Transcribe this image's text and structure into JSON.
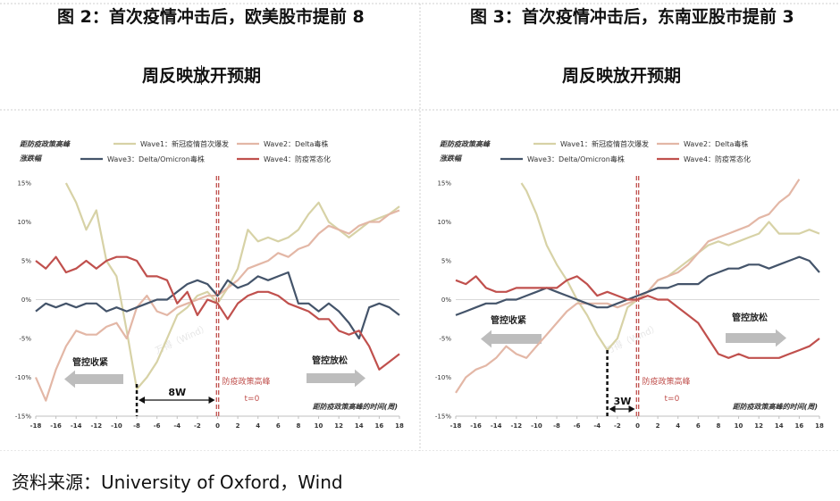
{
  "panels": [
    {
      "title_line1": "图 2：首次疫情冲击后，欧美股市提前 8",
      "title_line2": "周反映放开预期"
    },
    {
      "title_line1": "图 3：首次疫情冲击后，东南亚股市提前 3",
      "title_line2": "周反映放开预期"
    }
  ],
  "source": "资料来源：University of Oxford，Wind",
  "chart_data": [
    {
      "type": "line",
      "ylabel_line1": "距防疫政策高峰",
      "ylabel_line2": "涨跌幅",
      "xlabel": "距防疫政策高峰的时间(周)",
      "xlim": [
        -18,
        18
      ],
      "ylim": [
        -15,
        15
      ],
      "x_ticks": [
        "-18",
        "-16",
        "-14",
        "-12",
        "-10",
        "-8",
        "-6",
        "-4",
        "-2",
        "0",
        "2",
        "4",
        "6",
        "8",
        "10",
        "12",
        "14",
        "16",
        "18"
      ],
      "y_ticks": [
        "15%",
        "10%",
        "5%",
        "0%",
        "-5%",
        "-10%",
        "-15%"
      ],
      "legend_position": "top",
      "series": [
        {
          "name": "Wave1：新冠疫情首次爆发",
          "color": "#d7d2a6",
          "x": [
            -15,
            -14,
            -13,
            -12,
            -11,
            -10,
            -9,
            -8,
            -7,
            -6,
            -5,
            -4,
            -3,
            -2,
            -1,
            0,
            1,
            2,
            3,
            4,
            5,
            6,
            7,
            8,
            9,
            10,
            11,
            12,
            13,
            14,
            15,
            16,
            17,
            18
          ],
          "y": [
            15,
            12.5,
            9,
            11.5,
            5,
            3,
            -4,
            -11.5,
            -10,
            -8,
            -5,
            -2,
            -1,
            0.5,
            1,
            -0.5,
            1.5,
            4,
            9,
            7.5,
            8,
            7.5,
            8,
            9,
            11,
            12.5,
            10,
            9,
            8,
            9,
            10,
            10.5,
            11,
            12
          ]
        },
        {
          "name": "Wave2：Delta毒株",
          "color": "#e3b7a6",
          "x": [
            -18,
            -17,
            -16,
            -15,
            -14,
            -13,
            -12,
            -11,
            -10,
            -9,
            -8,
            -7,
            -6,
            -5,
            -4,
            -3,
            -2,
            -1,
            0,
            1,
            2,
            3,
            4,
            5,
            6,
            7,
            8,
            9,
            10,
            11,
            12,
            13,
            14,
            15,
            16,
            17,
            18
          ],
          "y": [
            -10,
            -13,
            -9,
            -6,
            -4,
            -4.5,
            -4.5,
            -3.5,
            -3,
            -5,
            -1,
            0.5,
            -1.5,
            -2,
            -1,
            -0.5,
            0,
            0.5,
            0.5,
            1.5,
            2.5,
            4,
            4.5,
            5,
            6,
            5.5,
            6.5,
            7,
            8.5,
            9.5,
            9,
            8.5,
            9.5,
            10,
            10,
            11,
            11.5
          ]
        },
        {
          "name": "Wave3：Delta/Omicron毒株",
          "color": "#44546a",
          "x": [
            -18,
            -17,
            -16,
            -15,
            -14,
            -13,
            -12,
            -11,
            -10,
            -9,
            -8,
            -7,
            -6,
            -5,
            -4,
            -3,
            -2,
            -1,
            0,
            1,
            2,
            3,
            4,
            5,
            6,
            7,
            8,
            9,
            10,
            11,
            12,
            13,
            14,
            15,
            16,
            17,
            18
          ],
          "y": [
            -1.5,
            -0.5,
            -1,
            -0.5,
            -1,
            -0.5,
            -0.5,
            -1.5,
            -1,
            -1.5,
            -1,
            -0.5,
            0,
            0,
            1,
            2,
            2.5,
            2,
            0.5,
            2.5,
            1.5,
            2,
            3,
            2.5,
            3,
            3.5,
            -0.5,
            -0.5,
            -1.5,
            -0.5,
            -1.5,
            -3,
            -5,
            -1,
            -0.5,
            -1,
            -2
          ]
        },
        {
          "name": "Wave4：防疫常态化",
          "color": "#c0504d",
          "x": [
            -18,
            -17,
            -16,
            -15,
            -14,
            -13,
            -12,
            -11,
            -10,
            -9,
            -8,
            -7,
            -6,
            -5,
            -4,
            -3,
            -2,
            -1,
            0,
            1,
            2,
            3,
            4,
            5,
            6,
            7,
            8,
            9,
            10,
            11,
            12,
            13,
            14,
            15,
            16,
            17,
            18
          ],
          "y": [
            5,
            4,
            5.5,
            3.5,
            4,
            5,
            4,
            5,
            5.5,
            5.5,
            5,
            3,
            3,
            2.5,
            -0.5,
            1,
            -2,
            0,
            -0.5,
            -2.5,
            -0.5,
            0.5,
            1,
            1,
            0.5,
            -0.5,
            -1,
            -1.5,
            -2.5,
            -2.5,
            -4,
            -4.5,
            -4,
            -6,
            -9,
            -8,
            -7
          ]
        }
      ],
      "annotations": {
        "policy_line": "防疫政策高峰",
        "t0": "t=0",
        "left_arrow": "管控收紧",
        "right_arrow": "管控放松",
        "lead": "8W",
        "lead_from": -8,
        "watermark": "万得（Wind）"
      }
    },
    {
      "type": "line",
      "ylabel_line1": "距防疫政策高峰",
      "ylabel_line2": "涨跌幅",
      "xlabel": "距防疫政策高峰的时间(周)",
      "xlim": [
        -18,
        18
      ],
      "ylim": [
        -15,
        15
      ],
      "x_ticks": [
        "-18",
        "-16",
        "-14",
        "-12",
        "-10",
        "-8",
        "-6",
        "-4",
        "-2",
        "0",
        "2",
        "4",
        "6",
        "8",
        "10",
        "12",
        "14",
        "16",
        "18"
      ],
      "y_ticks": [
        "15%",
        "10%",
        "5%",
        "0%",
        "-5%",
        "-10%",
        "-15%"
      ],
      "legend_position": "top",
      "series": [
        {
          "name": "Wave1：新冠疫情首次爆发",
          "color": "#d7d2a6",
          "x": [
            -11.5,
            -11,
            -10,
            -9,
            -8,
            -7,
            -6,
            -5,
            -4,
            -3,
            -2,
            -1,
            0,
            1,
            2,
            3,
            4,
            5,
            6,
            7,
            8,
            9,
            10,
            11,
            12,
            13,
            14,
            15,
            16,
            17,
            18
          ],
          "y": [
            15,
            14,
            11,
            7,
            4.5,
            2.5,
            0,
            -2,
            -4.5,
            -6.5,
            -5,
            -1,
            0,
            1,
            2.5,
            3,
            4,
            5,
            6,
            7,
            7.5,
            7,
            7.5,
            8,
            8.5,
            10,
            8.5,
            8.5,
            8.5,
            9,
            8.5
          ]
        },
        {
          "name": "Wave2：Delta毒株",
          "color": "#e3b7a6",
          "x": [
            -18,
            -17,
            -16,
            -15,
            -14,
            -13,
            -12,
            -11,
            -10,
            -9,
            -8,
            -7,
            -6,
            -5,
            -4,
            -3,
            -2,
            -1,
            0,
            1,
            2,
            3,
            4,
            5,
            6,
            7,
            8,
            9,
            10,
            11,
            12,
            13,
            14,
            15,
            16
          ],
          "y": [
            -12,
            -10,
            -9,
            -8.5,
            -7.5,
            -6,
            -7,
            -7.5,
            -6,
            -4.5,
            -3,
            -1.5,
            -0.5,
            -0.5,
            -0.5,
            -0.5,
            -1,
            -0.5,
            0,
            1,
            2.5,
            3,
            3.5,
            4.5,
            6,
            7.5,
            8,
            8.5,
            9,
            9.5,
            10.5,
            11,
            12.5,
            13.5,
            15.5
          ]
        },
        {
          "name": "Wave3：Delta/Omicron毒株",
          "color": "#44546a",
          "x": [
            -18,
            -17,
            -16,
            -15,
            -14,
            -13,
            -12,
            -11,
            -10,
            -9,
            -8,
            -7,
            -6,
            -5,
            -4,
            -3,
            -2,
            -1,
            0,
            1,
            2,
            3,
            4,
            5,
            6,
            7,
            8,
            9,
            10,
            11,
            12,
            13,
            14,
            15,
            16,
            17,
            18
          ],
          "y": [
            -2,
            -1.5,
            -1,
            -0.5,
            -0.5,
            0,
            0,
            0.5,
            1,
            1.5,
            1,
            0.5,
            0,
            -0.5,
            -1,
            -1,
            -0.5,
            0,
            0.5,
            1,
            1.5,
            1.5,
            2,
            2,
            2,
            3,
            3.5,
            4,
            4,
            4.5,
            4.5,
            4,
            4.5,
            5,
            5.5,
            5,
            3.5
          ]
        },
        {
          "name": "Wave4：防疫常态化",
          "color": "#c0504d",
          "x": [
            -18,
            -17,
            -16,
            -15,
            -14,
            -13,
            -12,
            -11,
            -10,
            -9,
            -8,
            -7,
            -6,
            -5,
            -4,
            -3,
            -2,
            -1,
            0,
            1,
            2,
            3,
            4,
            5,
            6,
            7,
            8,
            9,
            10,
            11,
            12,
            13,
            14,
            15,
            16,
            17,
            18
          ],
          "y": [
            2.5,
            2,
            3,
            1.5,
            1,
            1,
            1.5,
            1.5,
            1.5,
            1.5,
            1.5,
            2.5,
            3,
            2,
            0.5,
            1,
            0.5,
            0,
            0,
            0.5,
            0,
            0,
            -1,
            -2,
            -3,
            -5,
            -7,
            -7.5,
            -7,
            -7.5,
            -7.5,
            -7.5,
            -7.5,
            -7,
            -6.5,
            -6,
            -5
          ]
        }
      ],
      "annotations": {
        "policy_line": "防疫政策高峰",
        "t0": "t=0",
        "left_arrow": "管控收紧",
        "right_arrow": "管控放松",
        "lead": "3W",
        "lead_from": -3,
        "watermark": "万得（Wind）"
      }
    }
  ]
}
